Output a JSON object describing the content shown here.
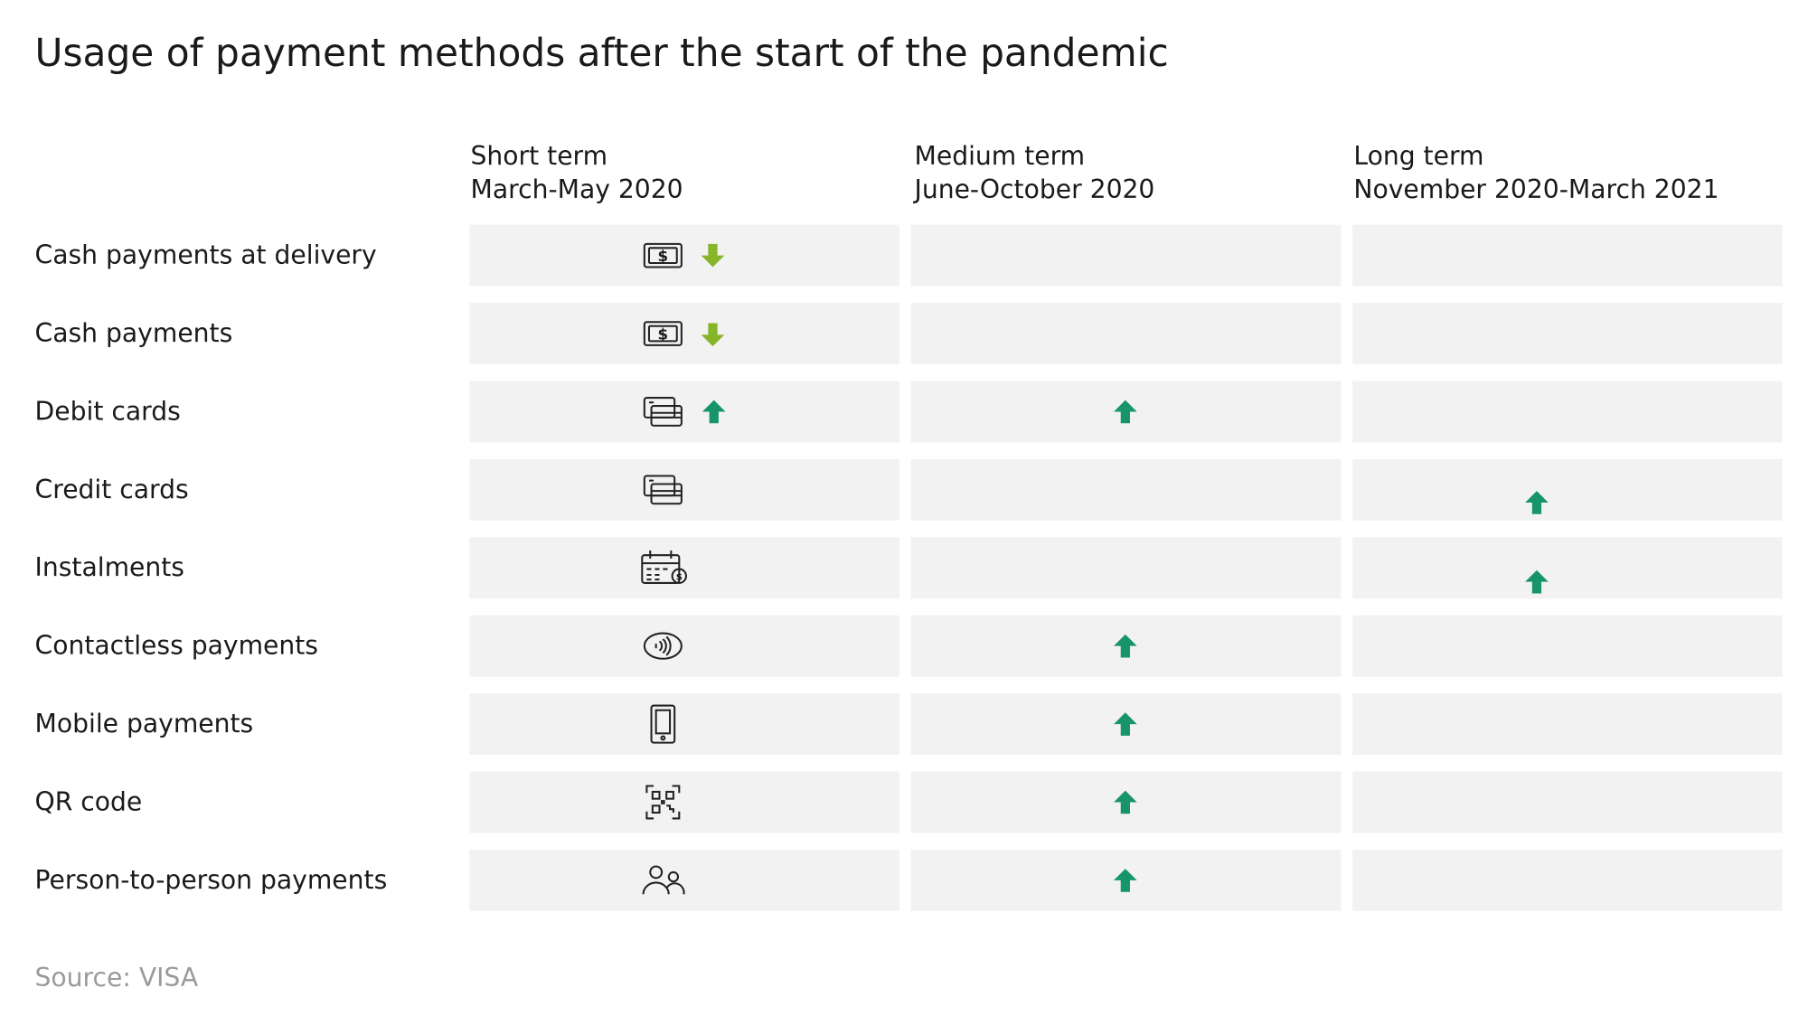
{
  "header": {
    "title": "Usage of payment methods after the start of the pandemic"
  },
  "table": {
    "columns": [
      [
        "Short term",
        "March-May 2020"
      ],
      [
        "Medium term",
        "June-October 2020"
      ],
      [
        "Long term",
        "November 2020-March 2021"
      ]
    ],
    "rows": [
      "Cash payments at delivery",
      "Cash payments",
      "Debit cards",
      "Credit cards",
      "Instalments",
      "Contactless payments",
      "Mobile payments",
      "QR code",
      "Person-to-person payments"
    ]
  },
  "footer": {
    "source": "Source: VISA"
  }
}
